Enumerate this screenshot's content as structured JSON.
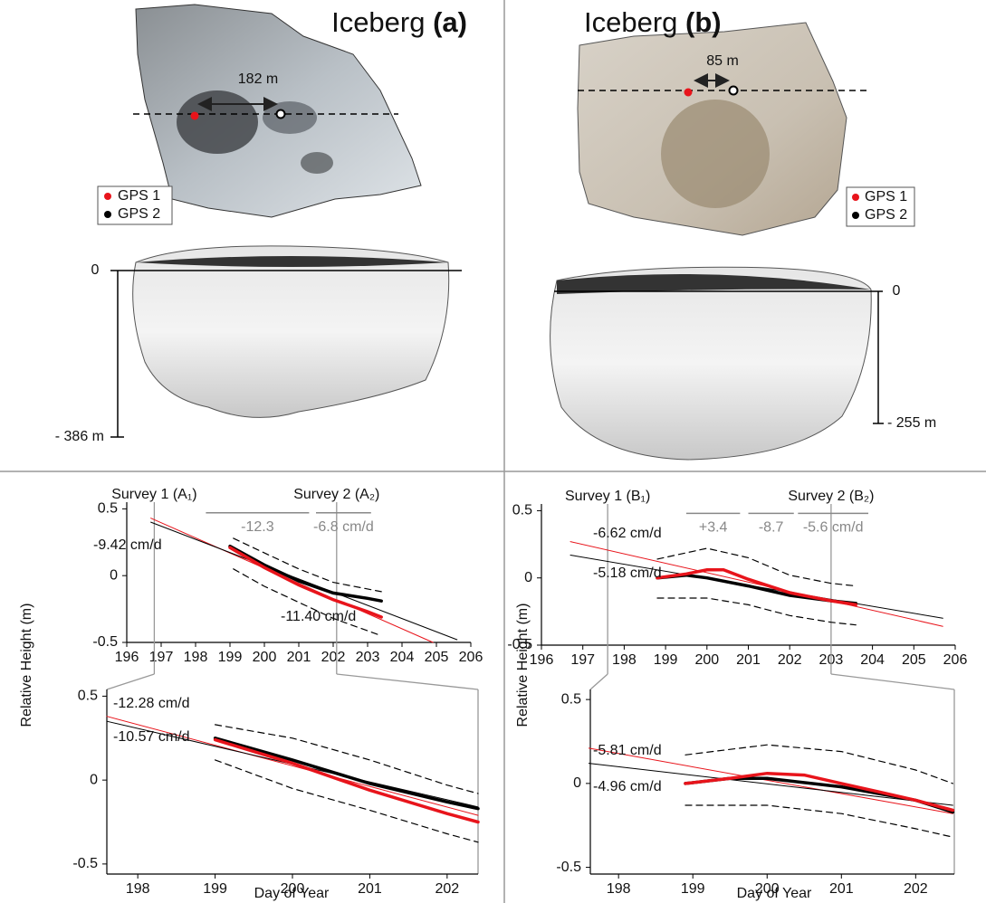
{
  "panels": [
    {
      "name": "Iceberg",
      "tag": "(a)",
      "distance": "182 m",
      "legend": [
        "GPS 1",
        "GPS 2"
      ],
      "waterline": "0",
      "depth": "- 386 m"
    },
    {
      "name": "Iceberg",
      "tag": "(b)",
      "distance": "85 m",
      "legend": [
        "GPS 1",
        "GPS 2"
      ],
      "waterline": "0",
      "depth": "- 255 m"
    }
  ],
  "chart_data": [
    {
      "type": "line",
      "ylabel": "Relative Height (m)",
      "xlim": [
        196,
        206
      ],
      "xticks": [
        196,
        197,
        198,
        199,
        200,
        201,
        202,
        203,
        204,
        205,
        206
      ],
      "ylim": [
        -0.5,
        0.55
      ],
      "yticks": [
        0.5,
        0,
        -0.5
      ],
      "series": [
        {
          "color": "#000000",
          "style": "dashed",
          "x": [
            199.1,
            200,
            201,
            202,
            203.4
          ],
          "values": [
            0.28,
            0.17,
            0.05,
            -0.05,
            -0.12
          ]
        },
        {
          "color": "#000000",
          "style": "dashed",
          "x": [
            199.1,
            200,
            201,
            202,
            203.4
          ],
          "values": [
            0.05,
            -0.08,
            -0.2,
            -0.32,
            -0.45
          ]
        },
        {
          "color": "#e8141b",
          "style": "thin",
          "x": [
            196.7,
            204.9
          ],
          "values": [
            0.43,
            -0.5
          ]
        },
        {
          "color": "#000000",
          "style": "thin",
          "x": [
            196.7,
            205.6
          ],
          "values": [
            0.4,
            -0.48
          ]
        },
        {
          "color": "#000000",
          "style": "thick",
          "x": [
            199,
            200,
            201,
            202,
            203,
            203.4
          ],
          "values": [
            0.22,
            0.08,
            -0.04,
            -0.13,
            -0.17,
            -0.19
          ]
        },
        {
          "color": "#e8141b",
          "style": "thick",
          "x": [
            199,
            200,
            201,
            202,
            203,
            203.4
          ],
          "values": [
            0.21,
            0.06,
            -0.07,
            -0.18,
            -0.27,
            -0.31
          ]
        }
      ],
      "surveys": [
        {
          "label": "Survey 1 (A₁)",
          "x": 196.8
        },
        {
          "label": "Survey 2 (A₂)",
          "x": 202.1
        }
      ],
      "rates": [
        {
          "label": "-12.3",
          "x": [
            198.3,
            201.3
          ],
          "y": 0.47
        },
        {
          "label": "-6.8 cm/d",
          "x": [
            201.5,
            203.1
          ],
          "y": 0.47
        }
      ],
      "annotations": [
        "-9.42 cm/d",
        "-11.40 cm/d"
      ]
    },
    {
      "type": "line",
      "xlabel": "Day of Year",
      "xlim": [
        197.6,
        202.4
      ],
      "xticks": [
        198,
        199,
        200,
        201,
        202
      ],
      "ylim": [
        -0.56,
        0.54
      ],
      "yticks": [
        0.5,
        0,
        -0.5
      ],
      "series": [
        {
          "color": "#000000",
          "style": "dashed",
          "x": [
            199,
            200,
            201,
            202,
            202.4
          ],
          "values": [
            0.33,
            0.25,
            0.12,
            -0.03,
            -0.08
          ]
        },
        {
          "color": "#000000",
          "style": "dashed",
          "x": [
            199,
            200,
            201,
            202,
            202.4
          ],
          "values": [
            0.12,
            -0.05,
            -0.18,
            -0.32,
            -0.37
          ]
        },
        {
          "color": "#e8141b",
          "style": "thin",
          "x": [
            197.6,
            202.4
          ],
          "values": [
            0.38,
            -0.21
          ]
        },
        {
          "color": "#000000",
          "style": "thin",
          "x": [
            197.6,
            202.4
          ],
          "values": [
            0.35,
            -0.16
          ]
        },
        {
          "color": "#000000",
          "style": "thick",
          "x": [
            199,
            200,
            201,
            202,
            202.4
          ],
          "values": [
            0.25,
            0.12,
            -0.02,
            -0.13,
            -0.17
          ]
        },
        {
          "color": "#e8141b",
          "style": "thick",
          "x": [
            199,
            200,
            201,
            202,
            202.4
          ],
          "values": [
            0.24,
            0.1,
            -0.06,
            -0.2,
            -0.25
          ]
        }
      ],
      "annotations": [
        "-12.28 cm/d",
        "-10.57 cm/d"
      ]
    },
    {
      "type": "line",
      "ylabel": "Relative Height (m)",
      "xlim": [
        196,
        206
      ],
      "xticks": [
        196,
        197,
        198,
        199,
        200,
        201,
        202,
        203,
        204,
        205,
        206
      ],
      "ylim": [
        -0.5,
        0.55
      ],
      "yticks": [
        0.5,
        0,
        -0.5
      ],
      "series": [
        {
          "color": "#000000",
          "style": "dashed",
          "x": [
            198.8,
            200,
            201,
            202,
            203,
            203.6
          ],
          "values": [
            0.14,
            0.22,
            0.15,
            0.02,
            -0.04,
            -0.06
          ]
        },
        {
          "color": "#000000",
          "style": "dashed",
          "x": [
            198.8,
            200,
            201,
            202,
            203,
            203.6
          ],
          "values": [
            -0.15,
            -0.15,
            -0.2,
            -0.28,
            -0.33,
            -0.35
          ]
        },
        {
          "color": "#e8141b",
          "style": "thin",
          "x": [
            196.7,
            205.7
          ],
          "values": [
            0.27,
            -0.36
          ]
        },
        {
          "color": "#000000",
          "style": "thin",
          "x": [
            196.7,
            205.7
          ],
          "values": [
            0.17,
            -0.3
          ]
        },
        {
          "color": "#000000",
          "style": "thick",
          "x": [
            198.8,
            199.5,
            200,
            201,
            202,
            203,
            203.6
          ],
          "values": [
            0,
            0.02,
            0,
            -0.06,
            -0.13,
            -0.17,
            -0.19
          ]
        },
        {
          "color": "#e8141b",
          "style": "thick",
          "x": [
            198.8,
            199.5,
            200,
            200.4,
            201,
            202,
            203,
            203.6
          ],
          "values": [
            0,
            0.03,
            0.06,
            0.06,
            -0.01,
            -0.11,
            -0.17,
            -0.2
          ]
        }
      ],
      "surveys": [
        {
          "label": "Survey 1 (B₁)",
          "x": 197.6
        },
        {
          "label": "Survey 2 (B₂)",
          "x": 203
        }
      ],
      "rates": [
        {
          "label": "+3.4",
          "x": [
            199.5,
            200.8
          ],
          "y": 0.48
        },
        {
          "label": "-8.7",
          "x": [
            201,
            202.1
          ],
          "y": 0.48
        },
        {
          "label": "-5.6 cm/d",
          "x": [
            202.2,
            203.9
          ],
          "y": 0.48
        }
      ],
      "annotations": [
        "-6.62 cm/d",
        "-5.18 cm/d"
      ]
    },
    {
      "type": "line",
      "xlabel": "Day of Year",
      "xlim": [
        197.62,
        202.52
      ],
      "xticks": [
        198,
        199,
        200,
        201,
        202
      ],
      "ylim": [
        -0.54,
        0.56
      ],
      "yticks": [
        0.5,
        0,
        -0.5
      ],
      "series": [
        {
          "color": "#000000",
          "style": "dashed",
          "x": [
            198.9,
            200,
            201,
            202,
            202.5
          ],
          "values": [
            0.17,
            0.23,
            0.19,
            0.08,
            0
          ]
        },
        {
          "color": "#000000",
          "style": "dashed",
          "x": [
            198.9,
            200,
            201,
            202,
            202.5
          ],
          "values": [
            -0.13,
            -0.13,
            -0.18,
            -0.27,
            -0.32
          ]
        },
        {
          "color": "#e8141b",
          "style": "thin",
          "x": [
            197.6,
            202.5
          ],
          "values": [
            0.21,
            -0.18
          ]
        },
        {
          "color": "#000000",
          "style": "thin",
          "x": [
            197.6,
            202.5
          ],
          "values": [
            0.12,
            -0.13
          ]
        },
        {
          "color": "#000000",
          "style": "thick",
          "x": [
            198.9,
            199.5,
            200,
            201,
            202,
            202.5
          ],
          "values": [
            0,
            0.03,
            0.03,
            -0.02,
            -0.1,
            -0.17
          ]
        },
        {
          "color": "#e8141b",
          "style": "thick",
          "x": [
            198.9,
            199.5,
            200,
            200.5,
            201,
            201.5,
            202,
            202.5
          ],
          "values": [
            0,
            0.03,
            0.06,
            0.05,
            0,
            -0.05,
            -0.1,
            -0.16
          ]
        }
      ],
      "annotations": [
        "-5.81 cm/d",
        "-4.96 cm/d"
      ]
    }
  ]
}
